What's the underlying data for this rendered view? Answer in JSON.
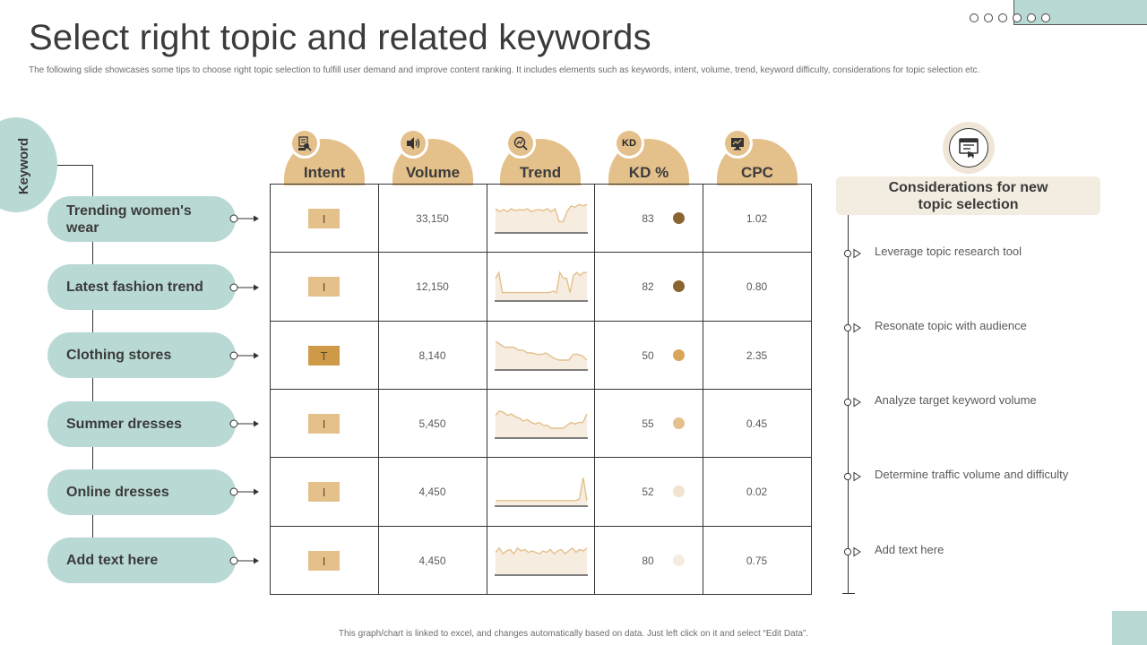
{
  "header": {
    "title": "Select right topic and related keywords",
    "subtitle": "The following slide showcases some tips to choose right topic selection to fulfill user demand and improve content ranking. It includes elements  such as keywords, intent, volume, trend, keyword difficulty, considerations for topic selection etc."
  },
  "footer": {
    "note": "This graph/chart is linked to excel, and changes automatically based on data. Just left click on it and select “Edit Data”."
  },
  "keyword_section": {
    "label": "Keyword",
    "items": [
      {
        "label": "Trending women's wear"
      },
      {
        "label": "Latest fashion trend"
      },
      {
        "label": "Clothing stores"
      },
      {
        "label": "Summer dresses"
      },
      {
        "label": "Online dresses"
      },
      {
        "label": "Add text here"
      }
    ]
  },
  "table": {
    "columns": [
      {
        "label": "Intent",
        "icon": "search-person-icon"
      },
      {
        "label": "Volume",
        "icon": "speaker-icon"
      },
      {
        "label": "Trend",
        "icon": "magnify-chart-icon"
      },
      {
        "label": "KD %",
        "icon_text": "KD"
      },
      {
        "label": "CPC",
        "icon": "monitor-chart-icon"
      }
    ],
    "rows": [
      {
        "intent": "I",
        "intent_color": "#e4c08b",
        "volume": "33,150",
        "trend": [
          0.25,
          0.35,
          0.28,
          0.35,
          0.25,
          0.32,
          0.28,
          0.3,
          0.25,
          0.35,
          0.3,
          0.28,
          0.32,
          0.25,
          0.35,
          0.25,
          0.7,
          0.7,
          0.35,
          0.15,
          0.2,
          0.1,
          0.15,
          0.1
        ],
        "kd": "83",
        "kd_color": "#8b6530",
        "cpc": "1.02"
      },
      {
        "intent": "I",
        "intent_color": "#e4c08b",
        "volume": "12,150",
        "trend": [
          0.3,
          0.1,
          0.8,
          0.8,
          0.8,
          0.8,
          0.8,
          0.8,
          0.8,
          0.8,
          0.8,
          0.8,
          0.8,
          0.8,
          0.8,
          0.8,
          0.8,
          0.75,
          0.8,
          0.1,
          0.3,
          0.3,
          0.8,
          0.2,
          0.1,
          0.2,
          0.1,
          0.1
        ],
        "kd": "82",
        "kd_color": "#8b6530",
        "cpc": "0.80"
      },
      {
        "intent": "T",
        "intent_color": "#cf9a48",
        "volume": "8,140",
        "trend": [
          0.1,
          0.2,
          0.3,
          0.3,
          0.3,
          0.4,
          0.4,
          0.5,
          0.5,
          0.55,
          0.55,
          0.5,
          0.6,
          0.7,
          0.75,
          0.75,
          0.75,
          0.55,
          0.55,
          0.6,
          0.75
        ],
        "kd": "50",
        "kd_color": "#d9a55a",
        "cpc": "2.35"
      },
      {
        "intent": "I",
        "intent_color": "#e4c08b",
        "volume": "5,450",
        "trend": [
          0.3,
          0.15,
          0.2,
          0.3,
          0.25,
          0.35,
          0.4,
          0.5,
          0.45,
          0.55,
          0.6,
          0.55,
          0.65,
          0.65,
          0.75,
          0.75,
          0.75,
          0.75,
          0.65,
          0.55,
          0.6,
          0.55,
          0.55,
          0.25
        ],
        "kd": "55",
        "kd_color": "#e4c08b",
        "cpc": "0.45"
      },
      {
        "intent": "I",
        "intent_color": "#e4c08b",
        "volume": "4,450",
        "trend": [
          0.9,
          0.9,
          0.9,
          0.9,
          0.9,
          0.9,
          0.9,
          0.9,
          0.9,
          0.9,
          0.9,
          0.9,
          0.9,
          0.9,
          0.9,
          0.9,
          0.9,
          0.9,
          0.9,
          0.9,
          0.9,
          0.9,
          0.85,
          0.1,
          0.9
        ],
        "kd": "52",
        "kd_color": "#f1e3ce",
        "cpc": "0.02"
      },
      {
        "intent": "I",
        "intent_color": "#e4c08b",
        "volume": "4,450",
        "trend": [
          0.3,
          0.15,
          0.35,
          0.25,
          0.2,
          0.35,
          0.15,
          0.25,
          0.2,
          0.3,
          0.25,
          0.3,
          0.35,
          0.25,
          0.3,
          0.2,
          0.35,
          0.25,
          0.2,
          0.35,
          0.25,
          0.15,
          0.3,
          0.2,
          0.25,
          0.15
        ],
        "kd": "80",
        "kd_color": "#f5ece0",
        "cpc": "0.75"
      }
    ]
  },
  "considerations": {
    "icon": "checklist-hand-icon",
    "title": "Considerations for new topic selection",
    "items": [
      {
        "label": "Leverage  topic research tool"
      },
      {
        "label": "Resonate topic with audience"
      },
      {
        "label": "Analyze target keyword volume"
      },
      {
        "label": "Determine  traffic volume  and difficulty"
      },
      {
        "label": "Add text here"
      }
    ]
  },
  "colors": {
    "teal": "#b9d9d5",
    "sand": "#e4c08b",
    "cream": "#f3ece1",
    "spark_fill": "#f6ece0",
    "spark_line": "#e4c08b"
  }
}
